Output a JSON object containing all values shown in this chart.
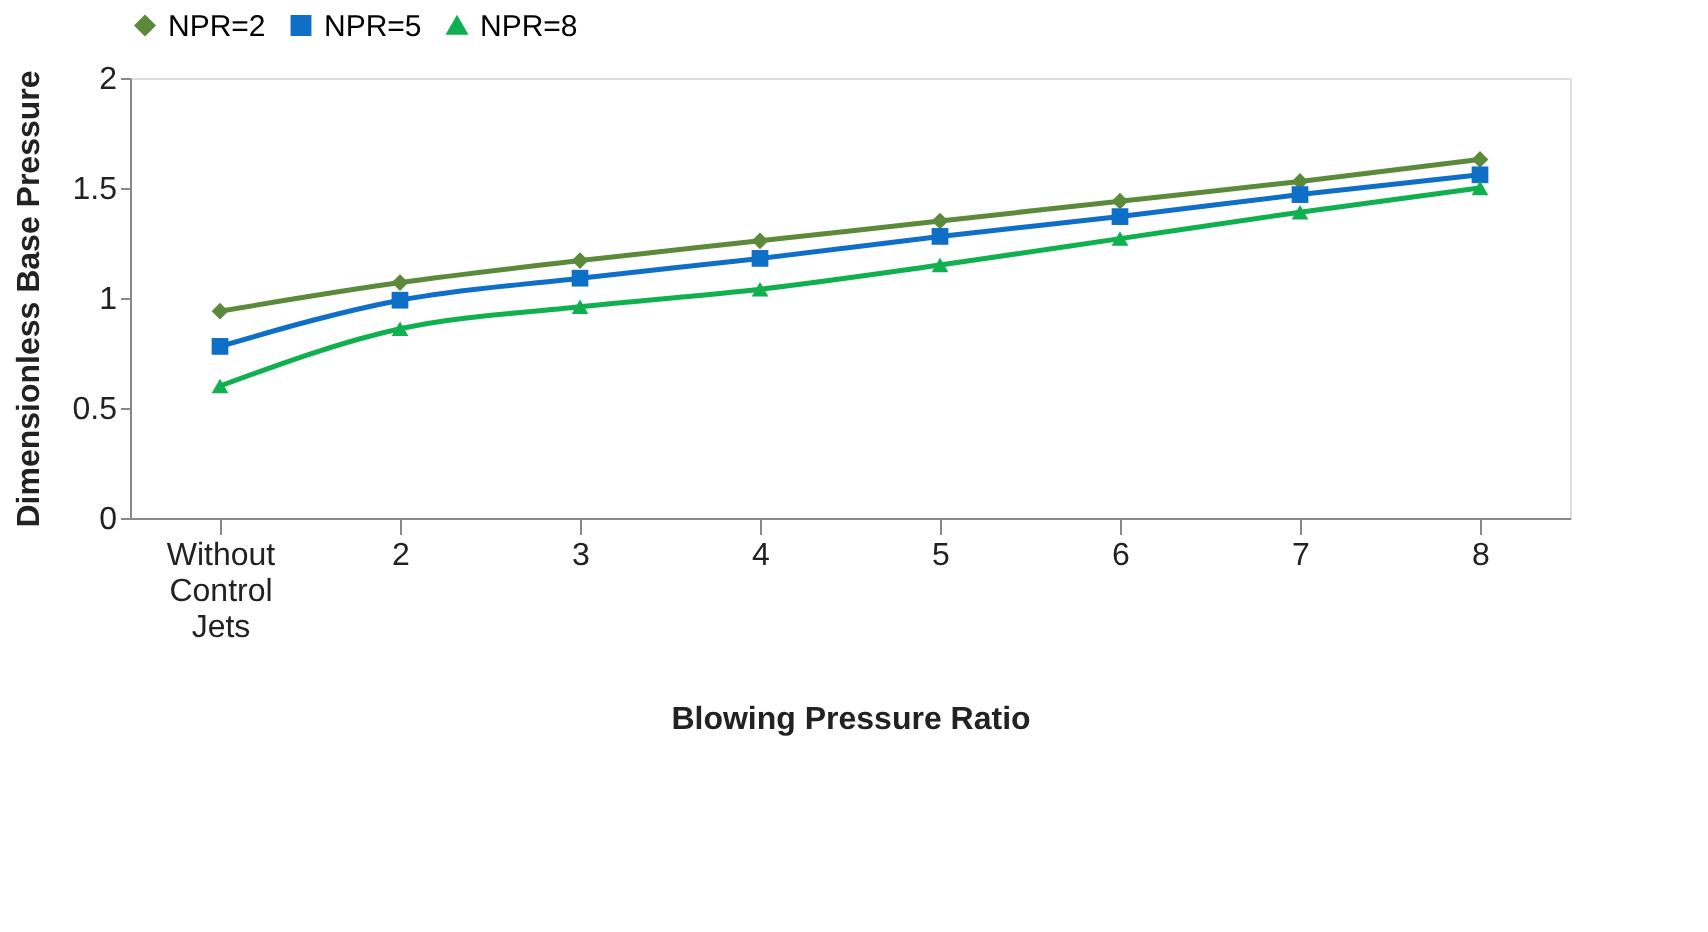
{
  "chart_data": {
    "type": "line",
    "xlabel": "Blowing Pressure Ratio",
    "ylabel": "Dimensionless Base Pressure",
    "categories": [
      "Without Control Jets",
      "2",
      "3",
      "4",
      "5",
      "6",
      "7",
      "8"
    ],
    "series": [
      {
        "name": "NPR=2",
        "color": "#5b8a3a",
        "marker": "diamond",
        "values": [
          0.94,
          1.07,
          1.17,
          1.26,
          1.35,
          1.44,
          1.53,
          1.63
        ]
      },
      {
        "name": "NPR=5",
        "color": "#0f6fc6",
        "marker": "square",
        "values": [
          0.78,
          0.99,
          1.09,
          1.18,
          1.28,
          1.37,
          1.47,
          1.56
        ]
      },
      {
        "name": "NPR=8",
        "color": "#10b050",
        "marker": "triangle",
        "values": [
          0.6,
          0.86,
          0.96,
          1.04,
          1.15,
          1.27,
          1.39,
          1.5
        ]
      }
    ],
    "ylim": [
      0,
      2
    ],
    "yticks": [
      0,
      0.5,
      1,
      1.5,
      2
    ],
    "grid": false,
    "legend": "top",
    "line_style": "solid"
  }
}
